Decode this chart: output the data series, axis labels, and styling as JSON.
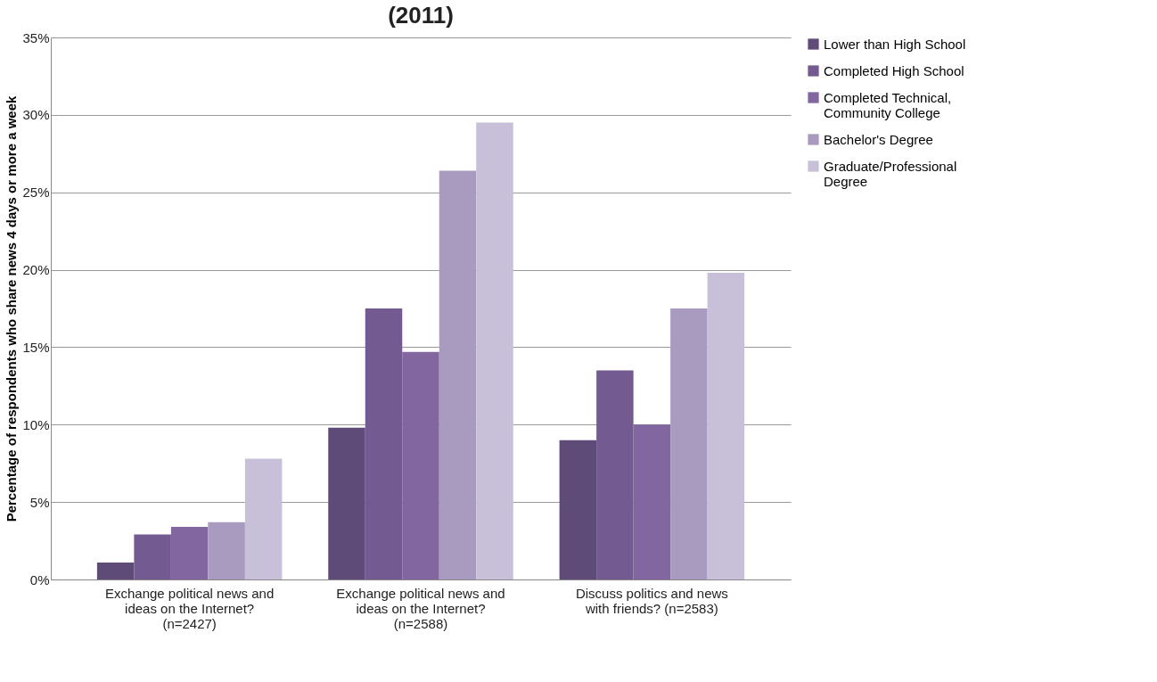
{
  "chart_data": {
    "type": "bar",
    "title": "(2011)",
    "ylabel": "Percentage of respondents who share news 4 days or more a week",
    "categories": [
      "Exchange political news and ideas on the Internet? (n=2427)",
      "Exchange political news and ideas on the Internet? (n=2588)",
      "Discuss politics and news with friends? (n=2583)"
    ],
    "series": [
      {
        "name": "Lower than High School",
        "color": "#5f4b77",
        "values": [
          1.1,
          9.8,
          9.0
        ]
      },
      {
        "name": "Completed High School",
        "color": "#735a91",
        "values": [
          2.9,
          17.5,
          13.5
        ]
      },
      {
        "name": "Completed Technical, Community College",
        "color": "#8266a0",
        "values": [
          3.4,
          14.7,
          10.0
        ]
      },
      {
        "name": "Bachelor's Degree",
        "color": "#a99bc0",
        "values": [
          3.7,
          26.4,
          17.5
        ]
      },
      {
        "name": "Graduate/Professional Degree",
        "color": "#c8c0d8",
        "values": [
          7.8,
          29.5,
          19.8
        ]
      }
    ],
    "ylim": [
      0,
      35
    ],
    "yticks": [
      {
        "value": 0,
        "label": "0%"
      },
      {
        "value": 5,
        "label": "5%"
      },
      {
        "value": 10,
        "label": "10%"
      },
      {
        "value": 15,
        "label": "15%"
      },
      {
        "value": 20,
        "label": "20%"
      },
      {
        "value": 25,
        "label": "25%"
      },
      {
        "value": 30,
        "label": "30%"
      },
      {
        "value": 35,
        "label": "35%"
      }
    ],
    "grid": "y",
    "legend": "right"
  }
}
